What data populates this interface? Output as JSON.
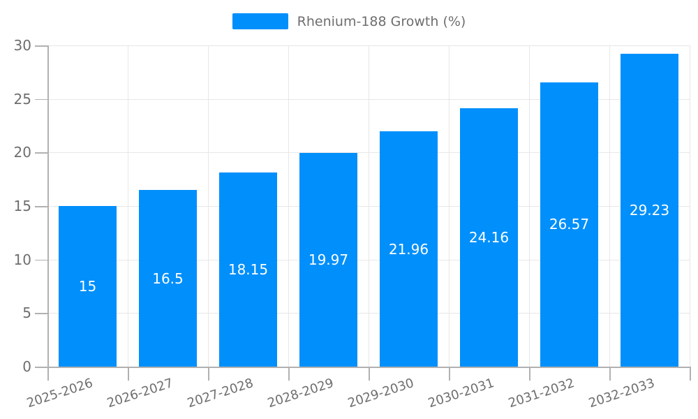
{
  "chart_data": {
    "type": "bar",
    "title": "",
    "xlabel": "",
    "ylabel": "",
    "series_name": "Rhenium-188 Growth (%)",
    "categories": [
      "2025-2026",
      "2026-2027",
      "2027-2028",
      "2028-2029",
      "2029-2030",
      "2030-2031",
      "2031-2032",
      "2032-2033"
    ],
    "values": [
      15,
      16.5,
      18.15,
      19.97,
      21.96,
      24.16,
      26.57,
      29.23
    ],
    "value_labels": [
      "15",
      "16.5",
      "18.15",
      "19.97",
      "21.96",
      "24.16",
      "26.57",
      "29.23"
    ],
    "ylim": [
      0,
      30
    ],
    "yticks": [
      0,
      5,
      10,
      15,
      20,
      25,
      30
    ],
    "grid": true,
    "legend_position": "top-center",
    "x_label_rotation_deg": -18,
    "colors": {
      "bar": "#008FFB",
      "grid": "#e7e7e7",
      "axis": "#b1b1b1",
      "label_text": "#6e6e6e",
      "value_label_text": "#ffffff",
      "background": "#ffffff"
    }
  }
}
